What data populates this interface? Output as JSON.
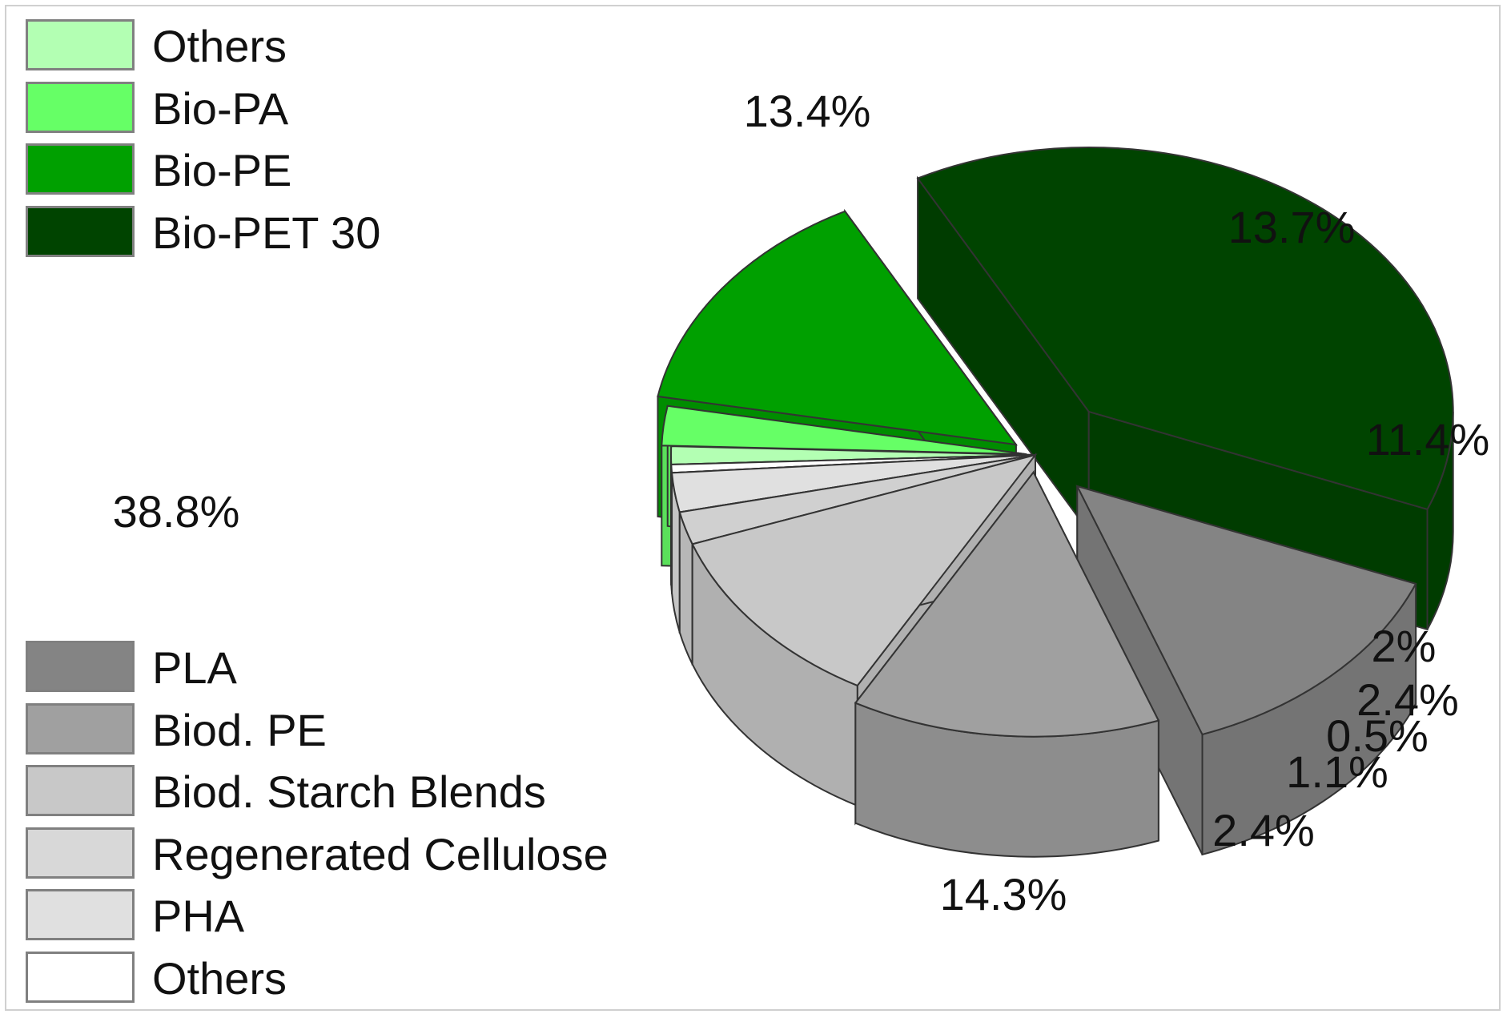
{
  "chart_data": {
    "type": "pie",
    "slices": [
      {
        "label": "Bio-PET 30",
        "value": 38.8,
        "value_label": "38.8%",
        "color": "#004400"
      },
      {
        "label": "PLA",
        "value": 13.4,
        "value_label": "13.4%",
        "color": "#848484"
      },
      {
        "label": "Biod. PE",
        "value": 13.7,
        "value_label": "13.7%",
        "color": "#a0a0a0"
      },
      {
        "label": "Biod. Starch Blends",
        "value": 11.4,
        "value_label": "11.4%",
        "color": "#c8c8c8"
      },
      {
        "label": "Regenerated Cellulose",
        "value": 2.0,
        "value_label": "2%",
        "color": "#d0d0d0"
      },
      {
        "label": "PHA",
        "value": 2.4,
        "value_label": "2.4%",
        "color": "#e0e0e0"
      },
      {
        "label": "Others",
        "value": 0.5,
        "value_label": "0.5%",
        "color": "#ffffff"
      },
      {
        "label": "Others",
        "value": 1.1,
        "value_label": "1.1%",
        "color": "#b3ffb3"
      },
      {
        "label": "Bio-PA",
        "value": 2.4,
        "value_label": "2.4%",
        "color": "#66ff66"
      },
      {
        "label": "Bio-PE",
        "value": 14.3,
        "value_label": "14.3%",
        "color": "#00a000"
      }
    ]
  },
  "legend_top": [
    {
      "label": "Others",
      "color": "#b3ffb3"
    },
    {
      "label": "Bio-PA",
      "color": "#66ff66"
    },
    {
      "label": "Bio-PE",
      "color": "#00a000"
    },
    {
      "label": "Bio-PET 30",
      "color": "#004400"
    }
  ],
  "legend_bottom": [
    {
      "label": "PLA",
      "color": "#848484"
    },
    {
      "label": "Biod. PE",
      "color": "#a0a0a0"
    },
    {
      "label": "Biod. Starch Blends",
      "color": "#c8c8c8"
    },
    {
      "label": "Regenerated Cellulose",
      "color": "#d8d8d8"
    },
    {
      "label": "PHA",
      "color": "#e0e0e0"
    },
    {
      "label": "Others",
      "color": "#ffffff"
    }
  ]
}
